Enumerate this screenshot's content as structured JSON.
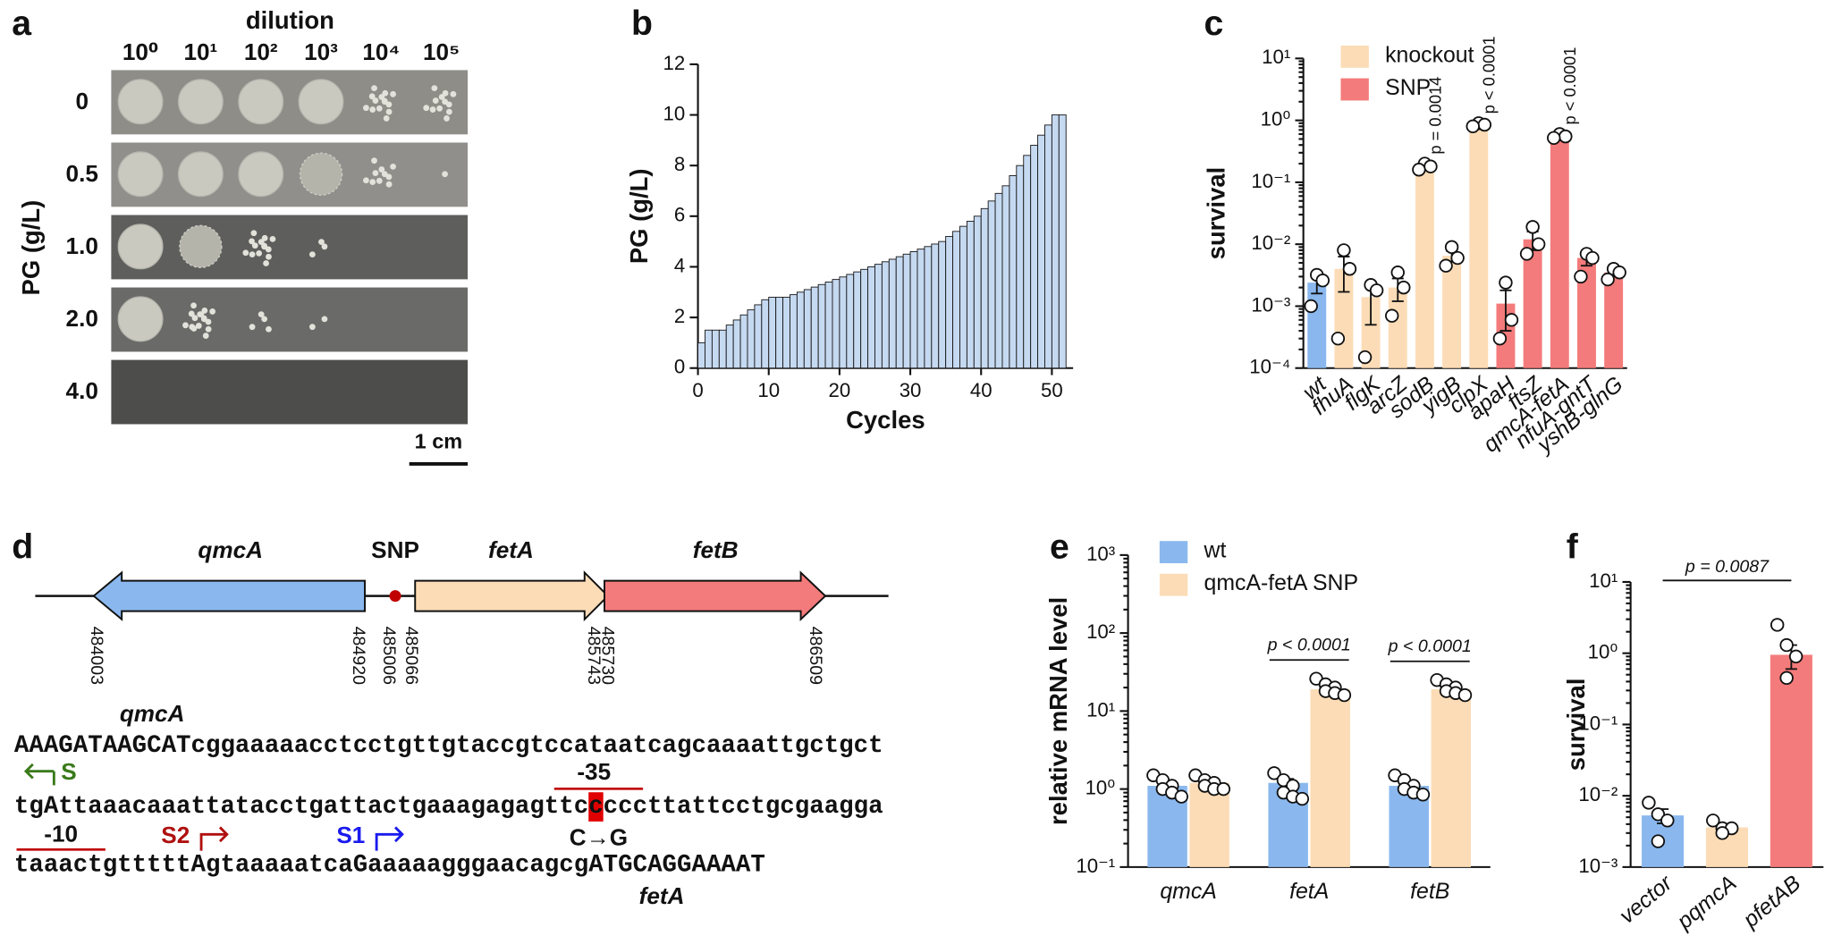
{
  "panel_a": {
    "label": "a",
    "title": "dilution",
    "dilutions": [
      "10⁰",
      "10¹",
      "10²",
      "10³",
      "10⁴",
      "10⁵"
    ],
    "ylabel": "PG (g/L)",
    "rows": [
      "0",
      "0.5",
      "1.0",
      "2.0",
      "4.0"
    ],
    "scale_bar": "1 cm"
  },
  "chart_data": [
    {
      "label": "b",
      "type": "bar",
      "xlabel": "Cycles",
      "ylabel": "PG (g/L)",
      "x": [
        1,
        2,
        3,
        4,
        5,
        6,
        7,
        8,
        9,
        10,
        11,
        12,
        13,
        14,
        15,
        16,
        17,
        18,
        19,
        20,
        21,
        22,
        23,
        24,
        25,
        26,
        27,
        28,
        29,
        30,
        31,
        32,
        33,
        34,
        35,
        36,
        37,
        38,
        39,
        40,
        41,
        42,
        43,
        44,
        45,
        46,
        47,
        48,
        49,
        50,
        51,
        52
      ],
      "values": [
        1.0,
        1.5,
        1.5,
        1.5,
        1.7,
        1.9,
        2.1,
        2.3,
        2.5,
        2.7,
        2.8,
        2.8,
        2.8,
        2.9,
        3.0,
        3.1,
        3.2,
        3.3,
        3.4,
        3.5,
        3.6,
        3.7,
        3.8,
        3.9,
        4.0,
        4.1,
        4.2,
        4.3,
        4.4,
        4.5,
        4.6,
        4.7,
        4.8,
        4.9,
        5.0,
        5.2,
        5.4,
        5.6,
        5.8,
        6.0,
        6.3,
        6.6,
        6.9,
        7.2,
        7.6,
        8.0,
        8.4,
        8.8,
        9.2,
        9.6,
        10,
        10
      ],
      "color": "#c5d9f1",
      "xlim": [
        0,
        53
      ],
      "xticks": [
        0,
        10,
        20,
        30,
        40,
        50
      ],
      "ylim": [
        0,
        12
      ],
      "yticks": [
        0,
        2,
        4,
        6,
        8,
        10,
        12
      ]
    },
    {
      "label": "c",
      "type": "bar",
      "ylabel": "survival",
      "log": true,
      "categories": [
        "wt",
        "fhuA",
        "flgK",
        "arcZ",
        "sodB",
        "yigB",
        "clpX",
        "apaH",
        "ftsZ",
        "qmcA-fetA",
        "nfuA-gntT",
        "yshB-glnG"
      ],
      "values": [
        0.0024,
        0.004,
        0.0014,
        0.002,
        0.18,
        0.0065,
        0.85,
        0.0011,
        0.012,
        0.55,
        0.006,
        0.0035
      ],
      "errors": [
        0.0008,
        0.0023,
        0.0009,
        0.0008,
        0.02,
        0.0013,
        0.05,
        0.0007,
        0.004,
        0.03,
        0.0015,
        0.0005
      ],
      "points": [
        [
          0.0032,
          0.0026,
          0.001
        ],
        [
          0.008,
          0.004,
          0.0003
        ],
        [
          0.0022,
          0.0018,
          0.00015
        ],
        [
          0.0035,
          0.002,
          0.0007
        ],
        [
          0.2,
          0.18,
          0.16
        ],
        [
          0.009,
          0.006,
          0.0045
        ],
        [
          0.9,
          0.85,
          0.8
        ],
        [
          0.0024,
          0.0006,
          0.0003
        ],
        [
          0.019,
          0.01,
          0.007
        ],
        [
          0.6,
          0.55,
          0.52
        ],
        [
          0.007,
          0.006,
          0.003
        ],
        [
          0.004,
          0.0035,
          0.0027
        ]
      ],
      "colors": [
        "#8ab8ee",
        "#fcdcb6",
        "#fcdcb6",
        "#fcdcb6",
        "#fcdcb6",
        "#fcdcb6",
        "#fcdcb6",
        "#f47b7b",
        "#f47b7b",
        "#f47b7b",
        "#f47b7b",
        "#f47b7b"
      ],
      "p_values": [
        null,
        null,
        null,
        null,
        "p = 0.0014",
        null,
        "p < 0.0001",
        null,
        null,
        "p < 0.0001",
        null,
        null
      ],
      "legend": [
        {
          "name": "knockout",
          "color": "#fcdcb6"
        },
        {
          "name": "SNP",
          "color": "#f47b7b"
        }
      ],
      "ylim": [
        0.0001,
        10
      ],
      "yticks": [
        {
          "value": 0.0001,
          "label": "10⁻⁴"
        },
        {
          "value": 0.001,
          "label": "10⁻³"
        },
        {
          "value": 0.01,
          "label": "10⁻²"
        },
        {
          "value": 0.1,
          "label": "10⁻¹"
        },
        {
          "value": 1,
          "label": "10⁰"
        },
        {
          "value": 10,
          "label": "10¹"
        }
      ]
    },
    {
      "label": "e",
      "type": "bar",
      "ylabel": "relative mRNA level",
      "log": true,
      "categories": [
        "qmcA",
        "fetA",
        "fetB"
      ],
      "series": [
        {
          "name": "wt",
          "color": "#8ab8ee",
          "values": [
            1.1,
            1.2,
            1.1
          ],
          "errors": [
            0.1,
            0.15,
            0.1
          ],
          "points": [
            [
              1.5,
              1.3,
              1.1,
              1.0,
              0.9,
              0.8
            ],
            [
              1.6,
              1.3,
              1.1,
              0.9,
              0.8,
              0.75
            ],
            [
              1.5,
              1.3,
              1.1,
              1.0,
              0.9,
              0.85
            ]
          ]
        },
        {
          "name": "qmcA-fetA SNP",
          "color": "#fcdcb6",
          "values": [
            1.2,
            19,
            19
          ],
          "errors": [
            0.1,
            1.5,
            1.5
          ],
          "points": [
            [
              1.5,
              1.3,
              1.2,
              1.1,
              1.0,
              1.0
            ],
            [
              26,
              22,
              20,
              18,
              17,
              16
            ],
            [
              25,
              22,
              20,
              18,
              17,
              16
            ]
          ]
        }
      ],
      "p_values": [
        null,
        "p < 0.0001",
        "p < 0.0001"
      ],
      "ylim": [
        0.1,
        1000
      ],
      "yticks": [
        {
          "value": 0.1,
          "label": "10⁻¹"
        },
        {
          "value": 1,
          "label": "10⁰"
        },
        {
          "value": 10,
          "label": "10¹"
        },
        {
          "value": 100,
          "label": "10²"
        },
        {
          "value": 1000,
          "label": "10³"
        }
      ]
    },
    {
      "label": "f",
      "type": "bar",
      "ylabel": "survival",
      "log": true,
      "categories": [
        "vector",
        "pqmcA",
        "pfetAB"
      ],
      "values": [
        0.0053,
        0.0036,
        0.95
      ],
      "errors": [
        0.0012,
        0.0004,
        0.35
      ],
      "points": [
        [
          0.008,
          0.0055,
          0.0045,
          0.0023
        ],
        [
          0.0045,
          0.0035,
          0.0035,
          0.003
        ],
        [
          2.5,
          1.3,
          0.9,
          0.45
        ]
      ],
      "colors": [
        "#8ab8ee",
        "#fcdcb6",
        "#f47b7b"
      ],
      "p_value": "p = 0.0087",
      "ylim": [
        0.001,
        10
      ],
      "yticks": [
        {
          "value": 0.001,
          "label": "10⁻³"
        },
        {
          "value": 0.01,
          "label": "10⁻²"
        },
        {
          "value": 0.1,
          "label": "10⁻¹"
        },
        {
          "value": 1,
          "label": "10⁰"
        },
        {
          "value": 10,
          "label": "10¹"
        }
      ]
    }
  ],
  "panel_d": {
    "label": "d",
    "genes": [
      "qmcA",
      "fetA",
      "fetB"
    ],
    "snp": "SNP",
    "coordinates": [
      "484003",
      "484920",
      "485006",
      "485066",
      "485743",
      "485730",
      "486509"
    ],
    "sequence": [
      "AAAGATAAGCATcggaaaaacctcctgttgtaccgtccataatcagcaaaattgctgct",
      "tgAttaaacaaattatacctgattactgaaagagagttcccccttattcctgcgaagga",
      "taaactgtttttAgtaaaaatcaGaaaaagggaacagcgATGCAGGAAAAT"
    ],
    "annotations": {
      "start_gene": "qmcA",
      "s": "S",
      "minus35": "-35",
      "minus10": "-10",
      "s2": "S2",
      "s1": "S1",
      "mutation": "C→G",
      "end_gene": "fetA"
    }
  }
}
